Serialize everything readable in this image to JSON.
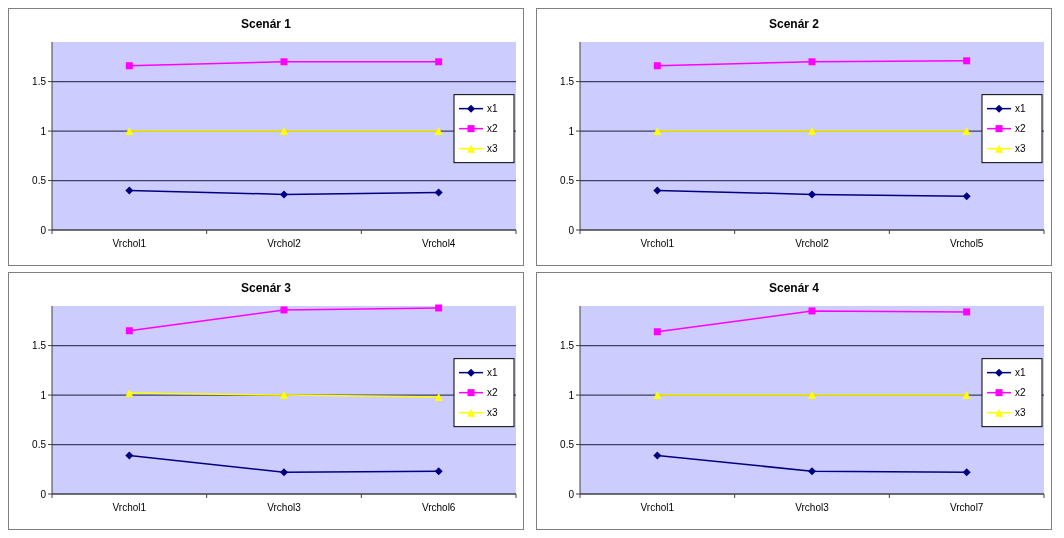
{
  "chart_data": [
    {
      "type": "line",
      "title": "Scenár 1",
      "categories": [
        "Vrchol1",
        "Vrchol2",
        "Vrchol4"
      ],
      "series": [
        {
          "name": "x1",
          "color": "#000080",
          "marker": "diamond",
          "values": [
            0.4,
            0.36,
            0.38
          ]
        },
        {
          "name": "x2",
          "color": "#ff00ff",
          "marker": "square",
          "values": [
            1.66,
            1.7,
            1.7
          ]
        },
        {
          "name": "x3",
          "color": "#ffff00",
          "marker": "triangle",
          "values": [
            1,
            1,
            1
          ]
        }
      ],
      "ylim": [
        0,
        1.9
      ],
      "yticks": [
        0,
        0.5,
        1,
        1.5
      ],
      "grid": "y",
      "legend": "right"
    },
    {
      "type": "line",
      "title": "Scenár 2",
      "categories": [
        "Vrchol1",
        "Vrchol2",
        "Vrchol5"
      ],
      "series": [
        {
          "name": "x1",
          "color": "#000080",
          "marker": "diamond",
          "values": [
            0.4,
            0.36,
            0.34
          ]
        },
        {
          "name": "x2",
          "color": "#ff00ff",
          "marker": "square",
          "values": [
            1.66,
            1.7,
            1.71
          ]
        },
        {
          "name": "x3",
          "color": "#ffff00",
          "marker": "triangle",
          "values": [
            1,
            1,
            1
          ]
        }
      ],
      "ylim": [
        0,
        1.9
      ],
      "yticks": [
        0,
        0.5,
        1,
        1.5
      ],
      "grid": "y",
      "legend": "right"
    },
    {
      "type": "line",
      "title": "Scenár 3",
      "categories": [
        "Vrchol1",
        "Vrchol3",
        "Vrchol6"
      ],
      "series": [
        {
          "name": "x1",
          "color": "#000080",
          "marker": "diamond",
          "values": [
            0.39,
            0.22,
            0.23
          ]
        },
        {
          "name": "x2",
          "color": "#ff00ff",
          "marker": "square",
          "values": [
            1.65,
            1.86,
            1.88
          ]
        },
        {
          "name": "x3",
          "color": "#ffff00",
          "marker": "triangle",
          "values": [
            1.02,
            1,
            0.98
          ]
        }
      ],
      "ylim": [
        0,
        1.9
      ],
      "yticks": [
        0,
        0.5,
        1,
        1.5
      ],
      "grid": "y",
      "legend": "right"
    },
    {
      "type": "line",
      "title": "Scenár 4",
      "categories": [
        "Vrchol1",
        "Vrchol3",
        "Vrchol7"
      ],
      "series": [
        {
          "name": "x1",
          "color": "#000080",
          "marker": "diamond",
          "values": [
            0.39,
            0.23,
            0.22
          ]
        },
        {
          "name": "x2",
          "color": "#ff00ff",
          "marker": "square",
          "values": [
            1.64,
            1.85,
            1.84
          ]
        },
        {
          "name": "x3",
          "color": "#ffff00",
          "marker": "triangle",
          "values": [
            1,
            1,
            1
          ]
        }
      ],
      "ylim": [
        0,
        1.9
      ],
      "yticks": [
        0,
        0.5,
        1,
        1.5
      ],
      "grid": "y",
      "legend": "right"
    }
  ]
}
